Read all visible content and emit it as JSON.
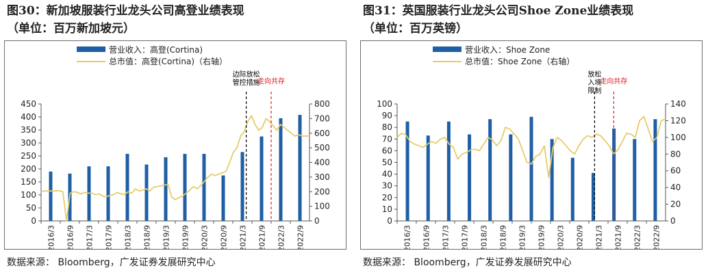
{
  "charts": [
    {
      "title": "图30：新加坡服装行业龙头公司高登业绩表现",
      "subtitle": "（单位：百万新加坡元）",
      "source": "数据来源：  Bloomberg，广发证券发展研究中心",
      "chart_data": {
        "type": "bar",
        "legend": {
          "placement": "top",
          "bar": "营业收入：高登(Cortina)",
          "line": "总市值：高登(Cortina)（右轴）"
        },
        "x_ticks": [
          "2016/3",
          "2016/9",
          "2017/3",
          "2017/9",
          "2018/3",
          "2018/9",
          "2019/3",
          "2019/9",
          "2020/3",
          "2020/9",
          "2021/3",
          "2021/9",
          "2022/3",
          "2022/9"
        ],
        "bar_values": [
          190,
          182,
          210,
          210,
          258,
          217,
          245,
          258,
          258,
          175,
          265,
          325,
          395,
          408
        ],
        "line_values": [
          200,
          205,
          205,
          205,
          205,
          207,
          200,
          0,
          190,
          200,
          195,
          185,
          195,
          190,
          190,
          180,
          185,
          170,
          165,
          175,
          180,
          195,
          185,
          180,
          200,
          190,
          220,
          205,
          210,
          220,
          205,
          230,
          235,
          240,
          245,
          250,
          165,
          145,
          160,
          170,
          190,
          210,
          235,
          220,
          240,
          270,
          300,
          320,
          310,
          320,
          330,
          340,
          400,
          470,
          500,
          580,
          610,
          680,
          720,
          660,
          620,
          640,
          700,
          680,
          650,
          620,
          660,
          640,
          620,
          600,
          580,
          590,
          580,
          580,
          580
        ],
        "y_left": {
          "min": 0,
          "max": 450,
          "step": 50,
          "ticks": [
            "0",
            "50",
            "100",
            "150",
            "200",
            "250",
            "300",
            "350",
            "400",
            "450"
          ]
        },
        "y_right": {
          "min": 0,
          "max": 800,
          "step": 100,
          "ticks": [
            "0",
            "100",
            "200",
            "300",
            "400",
            "500",
            "600",
            "700",
            "800"
          ]
        },
        "annotations": [
          {
            "text_lines": [
              "边际放松",
              "管控措施"
            ],
            "color": "#000000",
            "style": "dashed",
            "x": 10.7
          },
          {
            "text_lines": [
              "走向共存"
            ],
            "color": "#e02020",
            "style": "dashed",
            "x": 12.0
          }
        ],
        "colors": {
          "bar": "#1f5fa6",
          "line": "#e6cc6a"
        }
      }
    },
    {
      "title": "图31：英国服装行业龙头公司Shoe Zone业绩表现",
      "subtitle": "（单位：百万英镑）",
      "source": "数据来源：  Bloomberg，广发证券发展研究中心",
      "chart_data": {
        "type": "bar",
        "legend": {
          "placement": "top",
          "bar": "营业收入：Shoe Zone",
          "line": "总市值：Shoe Zone（右轴）"
        },
        "x_ticks": [
          "2016/3",
          "2016/9",
          "2017/3",
          "2017/9",
          "2018/3",
          "2018/9",
          "2019/3",
          "2019/9",
          "2020/3",
          "2020/9",
          "2021/3",
          "2021/9",
          "2022/3",
          "2022/9"
        ],
        "bar_values": [
          85,
          73,
          85,
          74,
          87,
          74,
          89,
          70,
          54,
          41,
          79,
          70,
          87
        ],
        "line_values": [
          100,
          105,
          103,
          95,
          92,
          90,
          88,
          92,
          95,
          93,
          98,
          100,
          92,
          88,
          74,
          80,
          82,
          85,
          86,
          84,
          92,
          100,
          97,
          90,
          96,
          112,
          110,
          104,
          98,
          84,
          70,
          68,
          77,
          80,
          90,
          52,
          88,
          100,
          96,
          90,
          84,
          80,
          90,
          98,
          102,
          100,
          104,
          102,
          96,
          90,
          80,
          85,
          95,
          105,
          104,
          100,
          120,
          125,
          110,
          95,
          100,
          120,
          122
        ],
        "y_left": {
          "min": 0,
          "max": 100,
          "step": 10,
          "ticks": [
            "0",
            "10",
            "20",
            "30",
            "40",
            "50",
            "60",
            "70",
            "80",
            "90",
            "100"
          ]
        },
        "y_right": {
          "min": 0,
          "max": 140,
          "step": 20,
          "ticks": [
            "0",
            "20",
            "40",
            "60",
            "80",
            "100",
            "120",
            "140"
          ]
        },
        "annotations": [
          {
            "text_lines": [
              "放松",
              "入境",
              "限制"
            ],
            "color": "#000000",
            "style": "dashed",
            "x": 10.3
          },
          {
            "text_lines": [
              "走向共存"
            ],
            "color": "#e02020",
            "style": "dashed",
            "x": 11.3
          }
        ],
        "colors": {
          "bar": "#1f5fa6",
          "line": "#e6cc6a"
        }
      }
    }
  ]
}
